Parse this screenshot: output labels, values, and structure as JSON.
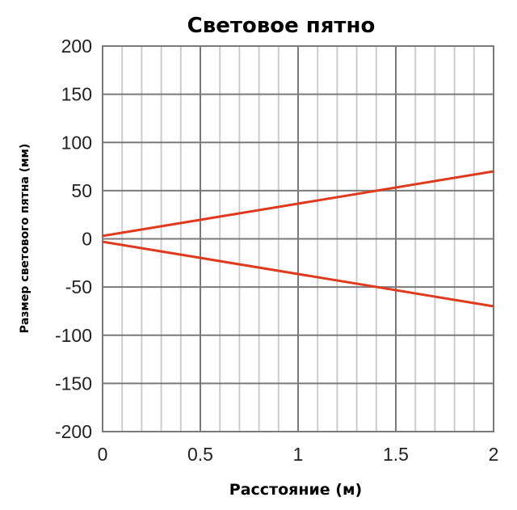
{
  "chart_data": {
    "type": "line",
    "title": "Световое пятно",
    "xlabel": "Расстояние (м)",
    "ylabel": "Размер светового пятна (мм)",
    "xlim": [
      0,
      2
    ],
    "ylim": [
      -200,
      200
    ],
    "x_ticks": [
      0,
      0.5,
      1,
      1.5,
      2
    ],
    "x_tick_labels": [
      "0",
      "0.5",
      "1",
      "1.5",
      "2"
    ],
    "y_ticks": [
      200,
      150,
      100,
      50,
      0,
      -50,
      -100,
      -150,
      -200
    ],
    "y_tick_labels": [
      "200",
      "150",
      "100",
      "50",
      "0",
      "-50",
      "-100",
      "-150",
      "-200"
    ],
    "grid": true,
    "minor_x_step": 0.1,
    "legend": "none",
    "series_color": "#e03a1e",
    "series": [
      {
        "x": [
          0,
          2
        ],
        "y": [
          3,
          70
        ]
      },
      {
        "x": [
          0,
          2
        ],
        "y": [
          -3,
          -70
        ]
      }
    ]
  }
}
